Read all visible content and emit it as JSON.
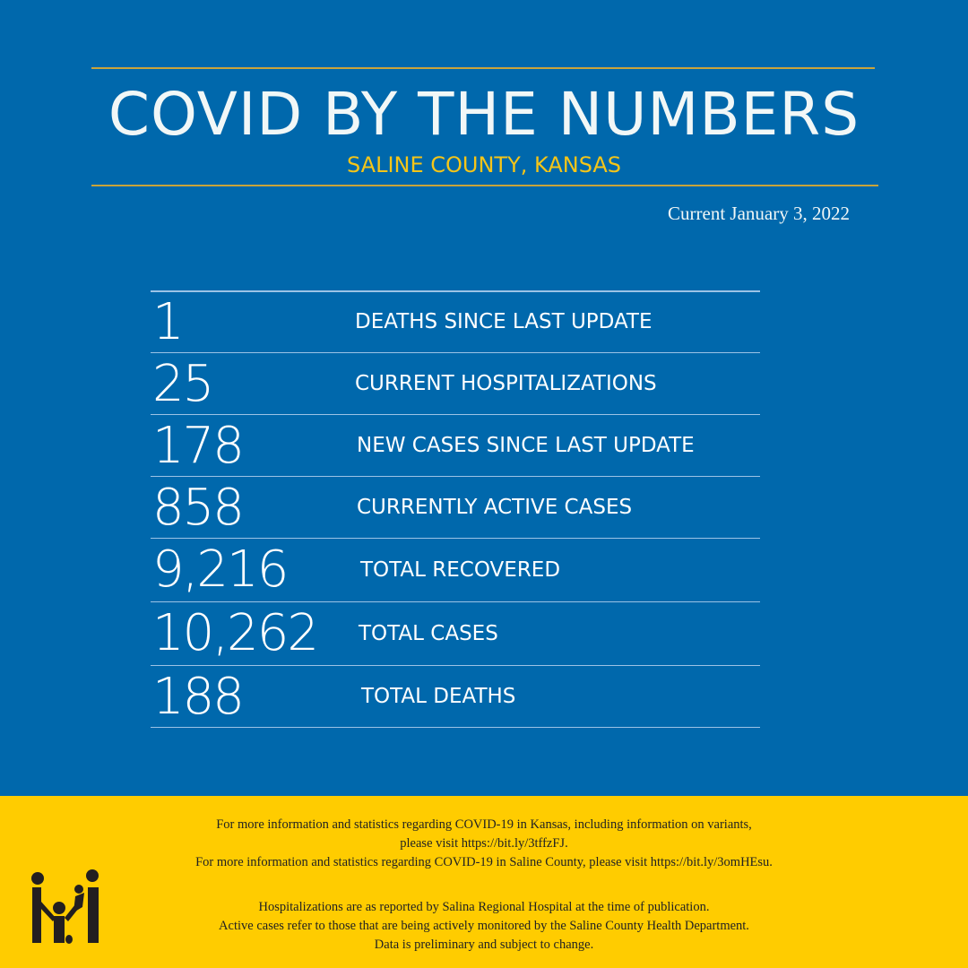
{
  "header": {
    "title": "COVID BY THE NUMBERS",
    "subtitle": "SALINE COUNTY, KANSAS",
    "date": "Current January 3, 2022"
  },
  "stats": [
    {
      "value": "1",
      "label": "DEATHS SINCE LAST UPDATE"
    },
    {
      "value": "25",
      "label": "CURRENT HOSPITALIZATIONS"
    },
    {
      "value": "178",
      "label": "NEW CASES SINCE LAST UPDATE"
    },
    {
      "value": "858",
      "label": "CURRENTLY ACTIVE CASES"
    },
    {
      "value": "9,216",
      "label": "TOTAL RECOVERED"
    },
    {
      "value": "10,262",
      "label": "TOTAL CASES"
    },
    {
      "value": "188",
      "label": "TOTAL DEATHS"
    }
  ],
  "footer": {
    "lines1": [
      "For more information and statistics regarding COVID-19 in Kansas, including information on variants,",
      "please visit https://bit.ly/3tffzFJ.",
      "For more information and statistics regarding COVID-19 in Saline County, please visit  https://bit.ly/3omHEsu."
    ],
    "lines2": [
      "Hospitalizations are as reported by Salina Regional Hospital at the time of publication.",
      "Active cases refer to those that are being actively monitored by the Saline County Health Department.",
      "Data is preliminary and subject to change."
    ],
    "logo": "family-figures-logo"
  },
  "colors": {
    "background": "#0068AC",
    "accent_line": "#C9A43A",
    "subtitle": "#F5C518",
    "footer": "#FFCC00"
  }
}
